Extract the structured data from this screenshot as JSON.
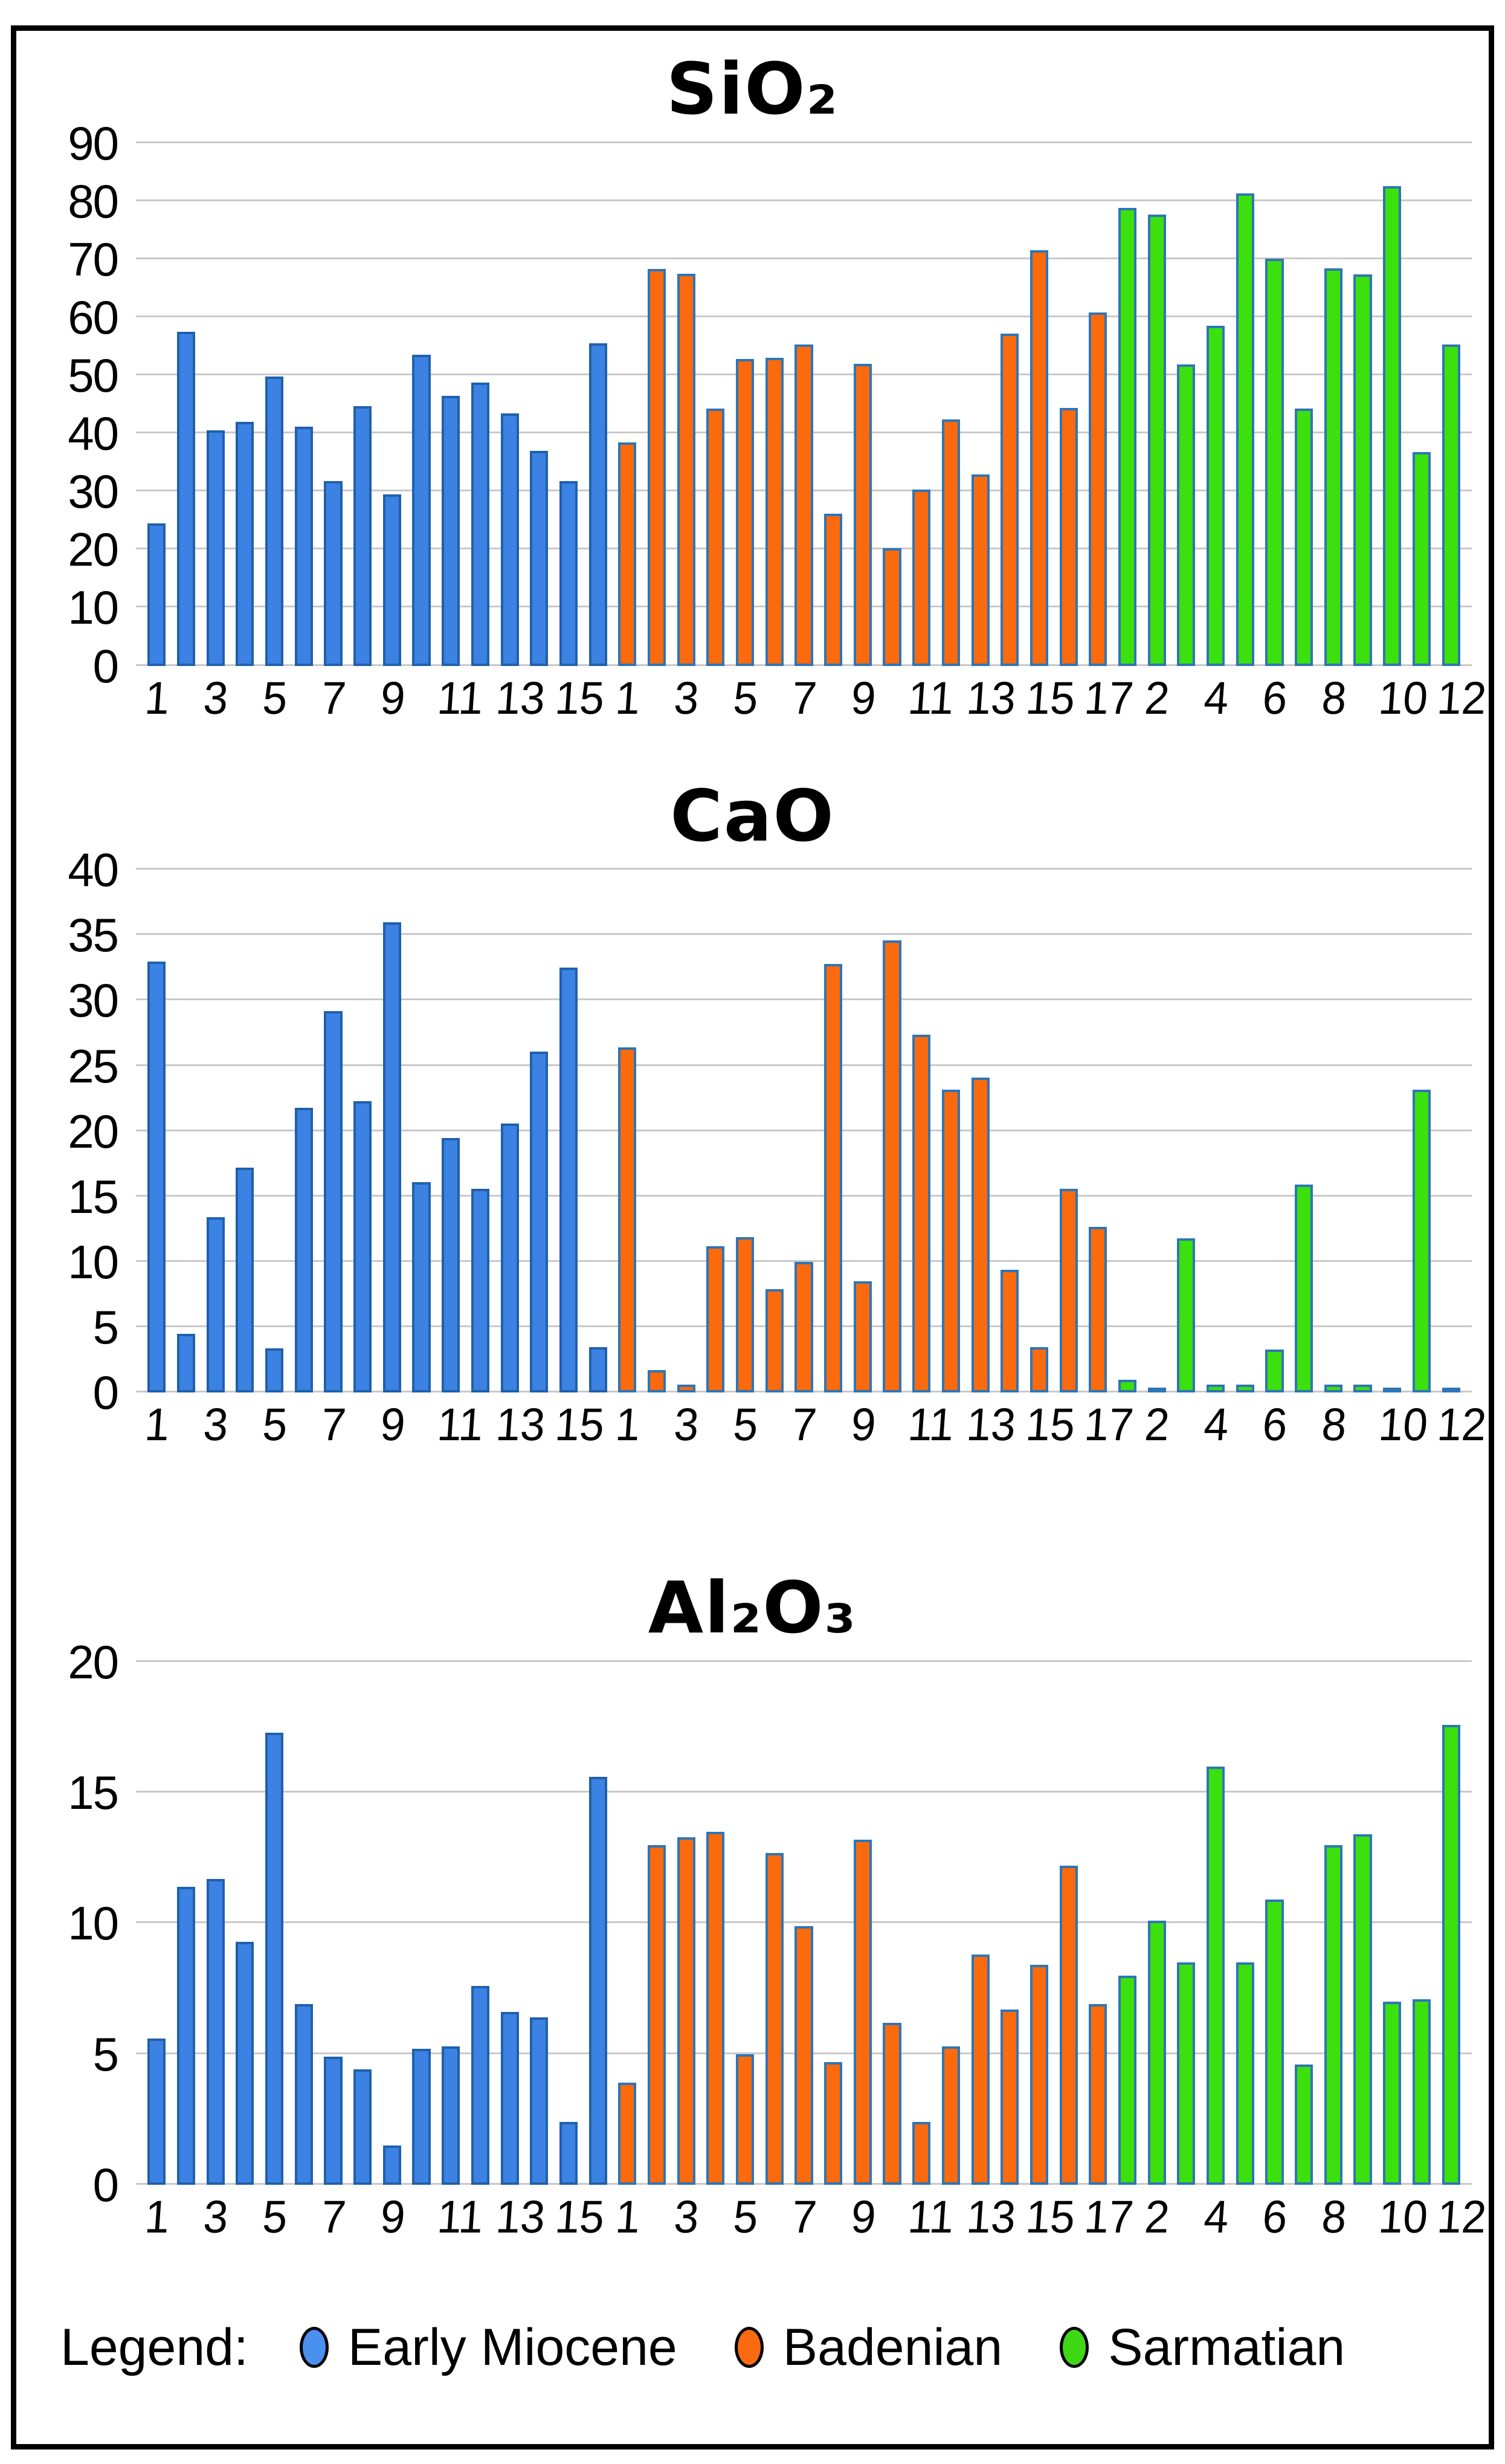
{
  "figure": {
    "background": "#FFFFFF",
    "frame_border_color": "#000000",
    "gridline_color": "#C9C9C9"
  },
  "legend": {
    "label": "Legend:",
    "entries": [
      {
        "name": "Early Miocene",
        "color": "#4A90EE"
      },
      {
        "name": "Badenian",
        "color": "#FA6A10"
      },
      {
        "name": "Sarmatian",
        "color": "#3FD815"
      }
    ]
  },
  "x_tick_labels_by_series": {
    "Early Miocene": [
      "1",
      "",
      "3",
      "",
      "5",
      "",
      "7",
      "",
      "9",
      "",
      "11",
      "",
      "13",
      "",
      "15",
      ""
    ],
    "Badenian": [
      "1",
      "",
      "3",
      "",
      "5",
      "",
      "7",
      "",
      "9",
      "",
      "11",
      "",
      "13",
      "",
      "15",
      "",
      "17"
    ],
    "Sarmatian": [
      "",
      "2",
      "",
      "4",
      "",
      "6",
      "",
      "8",
      "",
      "10",
      "",
      "12"
    ]
  },
  "chart_data": [
    {
      "type": "bar",
      "title": "SiO₂",
      "xlabel": "",
      "ylabel": "",
      "ylim": [
        0,
        90
      ],
      "y_ticks": [
        0,
        10,
        20,
        30,
        40,
        50,
        60,
        70,
        80,
        90
      ],
      "grid": true,
      "legend_position": "bottom-of-figure",
      "series": [
        {
          "name": "Early Miocene",
          "fill": "#3B82E2",
          "edge": "#2060AC",
          "values": [
            24.5,
            57.5,
            40.5,
            42,
            49.8,
            41.2,
            31.8,
            44.7,
            29.5,
            53.5,
            46.5,
            48.8,
            43.5,
            37,
            31.8,
            55.5
          ]
        },
        {
          "name": "Badenian",
          "fill": "#FB6A0D",
          "edge": "#2E75B6",
          "values": [
            38.5,
            68.3,
            67.5,
            44.3,
            52.8,
            53,
            55.3,
            26.2,
            52,
            20.2,
            30.3,
            42.4,
            32.9,
            57.2,
            71.5,
            44.4,
            60.8
          ]
        },
        {
          "name": "Sarmatian",
          "fill": "#3BE00D",
          "edge": "#2E75B6",
          "values": [
            78.8,
            77.7,
            51.9,
            58.5,
            81.3,
            70.1,
            44.3,
            68.4,
            67.4,
            82.6,
            36.8,
            55.3
          ]
        }
      ]
    },
    {
      "type": "bar",
      "title": "CaO",
      "xlabel": "",
      "ylabel": "",
      "ylim": [
        0,
        40
      ],
      "y_ticks": [
        0,
        5,
        10,
        15,
        20,
        25,
        30,
        35,
        40
      ],
      "grid": true,
      "legend_position": "bottom-of-figure",
      "series": [
        {
          "name": "Early Miocene",
          "fill": "#3B82E2",
          "edge": "#2060AC",
          "values": [
            33,
            4.5,
            13.4,
            17.2,
            3.4,
            21.8,
            29.2,
            22.3,
            36,
            16.1,
            19.5,
            15.6,
            20.6,
            26.1,
            32.5,
            3.5
          ]
        },
        {
          "name": "Badenian",
          "fill": "#FB6A0D",
          "edge": "#2E75B6",
          "values": [
            26.4,
            1.7,
            0.6,
            11.2,
            11.9,
            7.9,
            10,
            32.8,
            8.5,
            34.6,
            27.4,
            23.2,
            24.1,
            9.4,
            3.5,
            15.6,
            12.7
          ]
        },
        {
          "name": "Sarmatian",
          "fill": "#3BE00D",
          "edge": "#2E75B6",
          "values": [
            1,
            0.4,
            11.8,
            0.6,
            0.6,
            3.3,
            15.9,
            0.6,
            0.6,
            0.25,
            23.2,
            0.15
          ]
        }
      ]
    },
    {
      "type": "bar",
      "title": "Al₂O₃",
      "xlabel": "",
      "ylabel": "",
      "ylim": [
        0,
        20
      ],
      "y_ticks": [
        0,
        5,
        10,
        15,
        20
      ],
      "grid": true,
      "legend_position": "bottom-of-figure",
      "series": [
        {
          "name": "Early Miocene",
          "fill": "#3B82E2",
          "edge": "#2060AC",
          "values": [
            5.6,
            11.4,
            11.7,
            9.3,
            17.3,
            6.9,
            4.9,
            4.4,
            1.5,
            5.2,
            5.3,
            7.6,
            6.6,
            6.4,
            2.4,
            15.6
          ]
        },
        {
          "name": "Badenian",
          "fill": "#FB6A0D",
          "edge": "#2E75B6",
          "values": [
            3.9,
            13,
            13.3,
            13.5,
            5,
            12.7,
            9.9,
            4.7,
            13.2,
            6.2,
            2.4,
            5.3,
            8.8,
            6.7,
            8.4,
            12.2,
            6.9
          ]
        },
        {
          "name": "Sarmatian",
          "fill": "#3BE00D",
          "edge": "#2E75B6",
          "values": [
            8,
            10.1,
            8.5,
            16,
            8.5,
            10.9,
            4.6,
            13,
            13.4,
            7,
            7.1,
            17.6
          ]
        }
      ]
    }
  ]
}
